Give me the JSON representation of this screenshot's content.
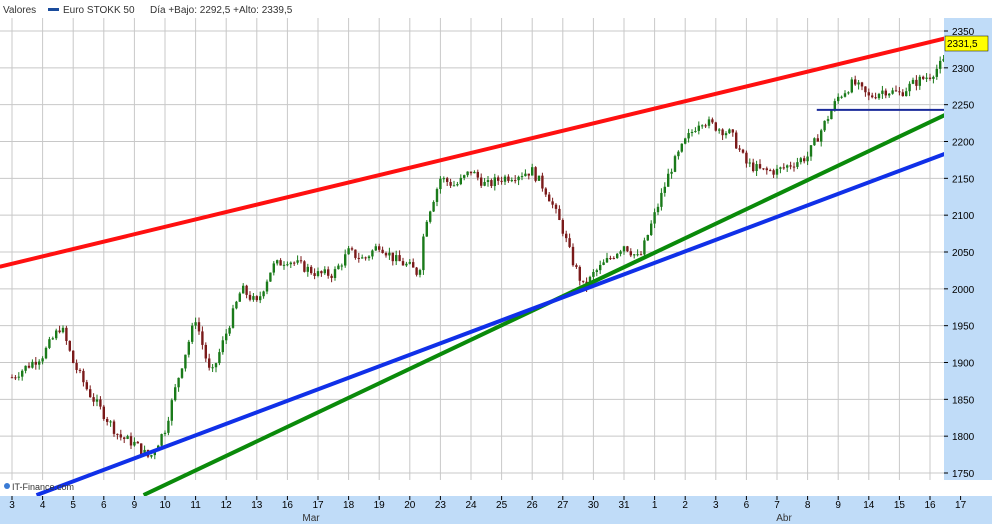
{
  "header": {
    "section_label": "Valores",
    "series_label": "Euro STOKK 50",
    "stats_text": "Día +Bajo: 2292,5 +Alto: 2339,5"
  },
  "footer": {
    "logo_text": "IT-Finance.com"
  },
  "colors": {
    "background": "#ffffff",
    "grid": "#c8c8c8",
    "axis_bg": "#c0dcf8",
    "candle_up": "#1a7a1a",
    "candle_down": "#7a1a1a",
    "last_value_bg": "#ffff00",
    "resistance_line": "#ff1010",
    "support_line_green": "#0a8a0a",
    "support_line_blue": "#1030e8",
    "horizontal_line": "#1a2a9a"
  },
  "chart_data": {
    "type": "candlestick",
    "series_name": "Euro STOKK 50",
    "ylim": [
      1720,
      2355
    ],
    "y_ticks": [
      "1750",
      "1800",
      "1850",
      "1900",
      "1950",
      "2000",
      "2050",
      "2100",
      "2150",
      "2200",
      "2250",
      "2300",
      "2350"
    ],
    "x_ticks": [
      "3",
      "4",
      "5",
      "6",
      "9",
      "10",
      "11",
      "12",
      "13",
      "16",
      "17",
      "18",
      "19",
      "20",
      "23",
      "24",
      "25",
      "26",
      "27",
      "30",
      "31",
      "1",
      "2",
      "3",
      "6",
      "7",
      "8",
      "9",
      "14",
      "15",
      "16",
      "17"
    ],
    "month_labels": [
      {
        "label": "Mar",
        "at_tick": 0
      },
      {
        "label": "Abr",
        "at_tick": 25
      }
    ],
    "last_value_label": "2331,5",
    "last_value": 2331.5,
    "session_anchors": [
      [
        0,
        1880
      ],
      [
        1,
        1910
      ],
      [
        1.6,
        1950
      ],
      [
        2,
        1900
      ],
      [
        2.5,
        1860
      ],
      [
        3,
        1830
      ],
      [
        3.5,
        1800
      ],
      [
        4,
        1790
      ],
      [
        4.5,
        1770
      ],
      [
        5,
        1810
      ],
      [
        5.5,
        1890
      ],
      [
        6,
        1960
      ],
      [
        6.5,
        1880
      ],
      [
        7,
        1940
      ],
      [
        7.5,
        2000
      ],
      [
        8,
        1980
      ],
      [
        8.5,
        2030
      ],
      [
        9,
        2040
      ],
      [
        9.5,
        2030
      ],
      [
        10,
        2020
      ],
      [
        10.5,
        2020
      ],
      [
        11,
        2050
      ],
      [
        11.5,
        2040
      ],
      [
        12,
        2060
      ],
      [
        12.5,
        2040
      ],
      [
        13,
        2030
      ],
      [
        13.3,
        2020
      ],
      [
        13.5,
        2090
      ],
      [
        14,
        2150
      ],
      [
        14.5,
        2140
      ],
      [
        15,
        2160
      ],
      [
        15.5,
        2140
      ],
      [
        16,
        2150
      ],
      [
        17,
        2160
      ],
      [
        17.5,
        2130
      ],
      [
        18,
        2080
      ],
      [
        18.3,
        2040
      ],
      [
        18.7,
        2000
      ],
      [
        19,
        2020
      ],
      [
        19.5,
        2040
      ],
      [
        20,
        2060
      ],
      [
        20.5,
        2040
      ],
      [
        21,
        2100
      ],
      [
        21.5,
        2160
      ],
      [
        22,
        2200
      ],
      [
        22.5,
        2230
      ],
      [
        23,
        2220
      ],
      [
        23.5,
        2210
      ],
      [
        24,
        2170
      ],
      [
        24.5,
        2160
      ],
      [
        25,
        2160
      ],
      [
        25.5,
        2170
      ],
      [
        26,
        2180
      ],
      [
        26.5,
        2220
      ],
      [
        27,
        2260
      ],
      [
        27.5,
        2280
      ],
      [
        28,
        2260
      ],
      [
        28.5,
        2270
      ],
      [
        29,
        2265
      ],
      [
        29.5,
        2280
      ],
      [
        30,
        2290
      ],
      [
        30.5,
        2310
      ],
      [
        31,
        2331.5
      ]
    ],
    "trend_lines": [
      {
        "color_key": "resistance_line",
        "from": [
          -0.4,
          2030
        ],
        "to": [
          31.3,
          2348
        ]
      },
      {
        "color_key": "support_line_green",
        "from": [
          4.3,
          1720
        ],
        "to": [
          31.3,
          2252
        ]
      },
      {
        "color_key": "support_line_blue",
        "from": [
          0.8,
          1720
        ],
        "to": [
          31.3,
          2196
        ]
      },
      {
        "color_key": "horizontal_line",
        "from": [
          26.3,
          2243
        ],
        "to": [
          31.3,
          2243
        ]
      }
    ]
  }
}
